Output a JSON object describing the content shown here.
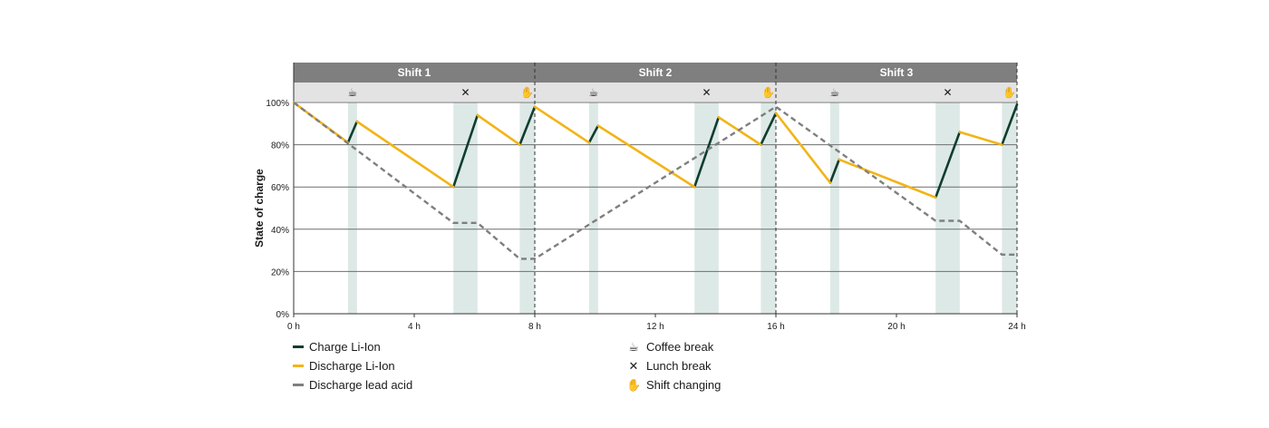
{
  "chart_data": {
    "type": "line",
    "ylabel": "State of charge",
    "xlabel": "",
    "xlim": [
      0,
      24
    ],
    "ylim": [
      0,
      100
    ],
    "x_ticks": [
      0,
      4,
      8,
      12,
      16,
      20,
      24
    ],
    "x_tick_labels": [
      "0 h",
      "4 h",
      "8 h",
      "12 h",
      "16 h",
      "20 h",
      "24 h"
    ],
    "y_ticks": [
      0,
      20,
      40,
      60,
      80,
      100
    ],
    "y_tick_labels": [
      "0%",
      "20%",
      "40%",
      "60%",
      "80%",
      "100%"
    ],
    "grid": "horizontal",
    "shifts": [
      {
        "label": "Shift 1",
        "start": 0,
        "end": 8
      },
      {
        "label": "Shift 2",
        "start": 8,
        "end": 16
      },
      {
        "label": "Shift 3",
        "start": 16,
        "end": 24
      }
    ],
    "breaks": [
      {
        "type": "coffee",
        "start": 1.8,
        "end": 2.1
      },
      {
        "type": "lunch",
        "start": 5.3,
        "end": 6.1
      },
      {
        "type": "shift",
        "start": 7.5,
        "end": 8.0
      },
      {
        "type": "coffee",
        "start": 9.8,
        "end": 10.1
      },
      {
        "type": "lunch",
        "start": 13.3,
        "end": 14.1
      },
      {
        "type": "shift",
        "start": 15.5,
        "end": 16.0
      },
      {
        "type": "coffee",
        "start": 17.8,
        "end": 18.1
      },
      {
        "type": "lunch",
        "start": 21.3,
        "end": 22.1
      },
      {
        "type": "shift",
        "start": 23.5,
        "end": 24.0
      }
    ],
    "series": [
      {
        "name": "Charge Li-Ion",
        "color": "#0f3d2e",
        "style": "solid",
        "segments": [
          [
            [
              1.8,
              81
            ],
            [
              2.1,
              91
            ]
          ],
          [
            [
              5.3,
              60
            ],
            [
              6.1,
              94
            ]
          ],
          [
            [
              7.5,
              80
            ],
            [
              8.0,
              98
            ]
          ],
          [
            [
              9.8,
              81
            ],
            [
              10.1,
              89
            ]
          ],
          [
            [
              13.3,
              60
            ],
            [
              14.1,
              93
            ]
          ],
          [
            [
              15.5,
              80
            ],
            [
              16.0,
              95
            ]
          ],
          [
            [
              17.8,
              62
            ],
            [
              18.1,
              73
            ]
          ],
          [
            [
              21.3,
              55
            ],
            [
              22.1,
              86
            ]
          ],
          [
            [
              23.5,
              80
            ],
            [
              24.0,
              99
            ]
          ]
        ]
      },
      {
        "name": "Discharge Li-Ion",
        "color": "#f2b417",
        "style": "solid",
        "segments": [
          [
            [
              0,
              100
            ],
            [
              1.8,
              81
            ]
          ],
          [
            [
              2.1,
              91
            ],
            [
              5.3,
              60
            ]
          ],
          [
            [
              6.1,
              94
            ],
            [
              7.5,
              80
            ]
          ],
          [
            [
              8.0,
              98
            ],
            [
              9.8,
              81
            ]
          ],
          [
            [
              10.1,
              89
            ],
            [
              13.3,
              60
            ]
          ],
          [
            [
              14.1,
              93
            ],
            [
              15.5,
              80
            ]
          ],
          [
            [
              16.0,
              95
            ],
            [
              17.8,
              62
            ]
          ],
          [
            [
              18.1,
              73
            ],
            [
              21.3,
              55
            ]
          ],
          [
            [
              22.1,
              86
            ],
            [
              23.5,
              80
            ]
          ]
        ]
      },
      {
        "name": "Discharge lead acid",
        "color": "#7f7f7f",
        "style": "dashed",
        "segments": [
          [
            [
              0,
              100
            ],
            [
              5.3,
              43
            ],
            [
              6.1,
              43
            ],
            [
              7.5,
              26
            ],
            [
              8.0,
              26
            ],
            [
              16.0,
              98
            ],
            [
              21.3,
              44
            ],
            [
              22.1,
              44
            ],
            [
              23.5,
              28
            ],
            [
              24.0,
              28
            ]
          ]
        ]
      }
    ],
    "colors": {
      "break_band": "#dde9e6",
      "header_dark": "#7f7f7f",
      "header_light": "#e3e3e3",
      "grid": "#6f6f6f"
    },
    "legend": {
      "lines": [
        "Charge Li-Ion",
        "Discharge Li-Ion",
        "Discharge lead acid"
      ],
      "icons": [
        {
          "icon": "coffee-cup-icon",
          "label": "Coffee break"
        },
        {
          "icon": "fork-knife-icon",
          "label": "Lunch break"
        },
        {
          "icon": "handshake-icon",
          "label": "Shift changing"
        }
      ]
    }
  }
}
